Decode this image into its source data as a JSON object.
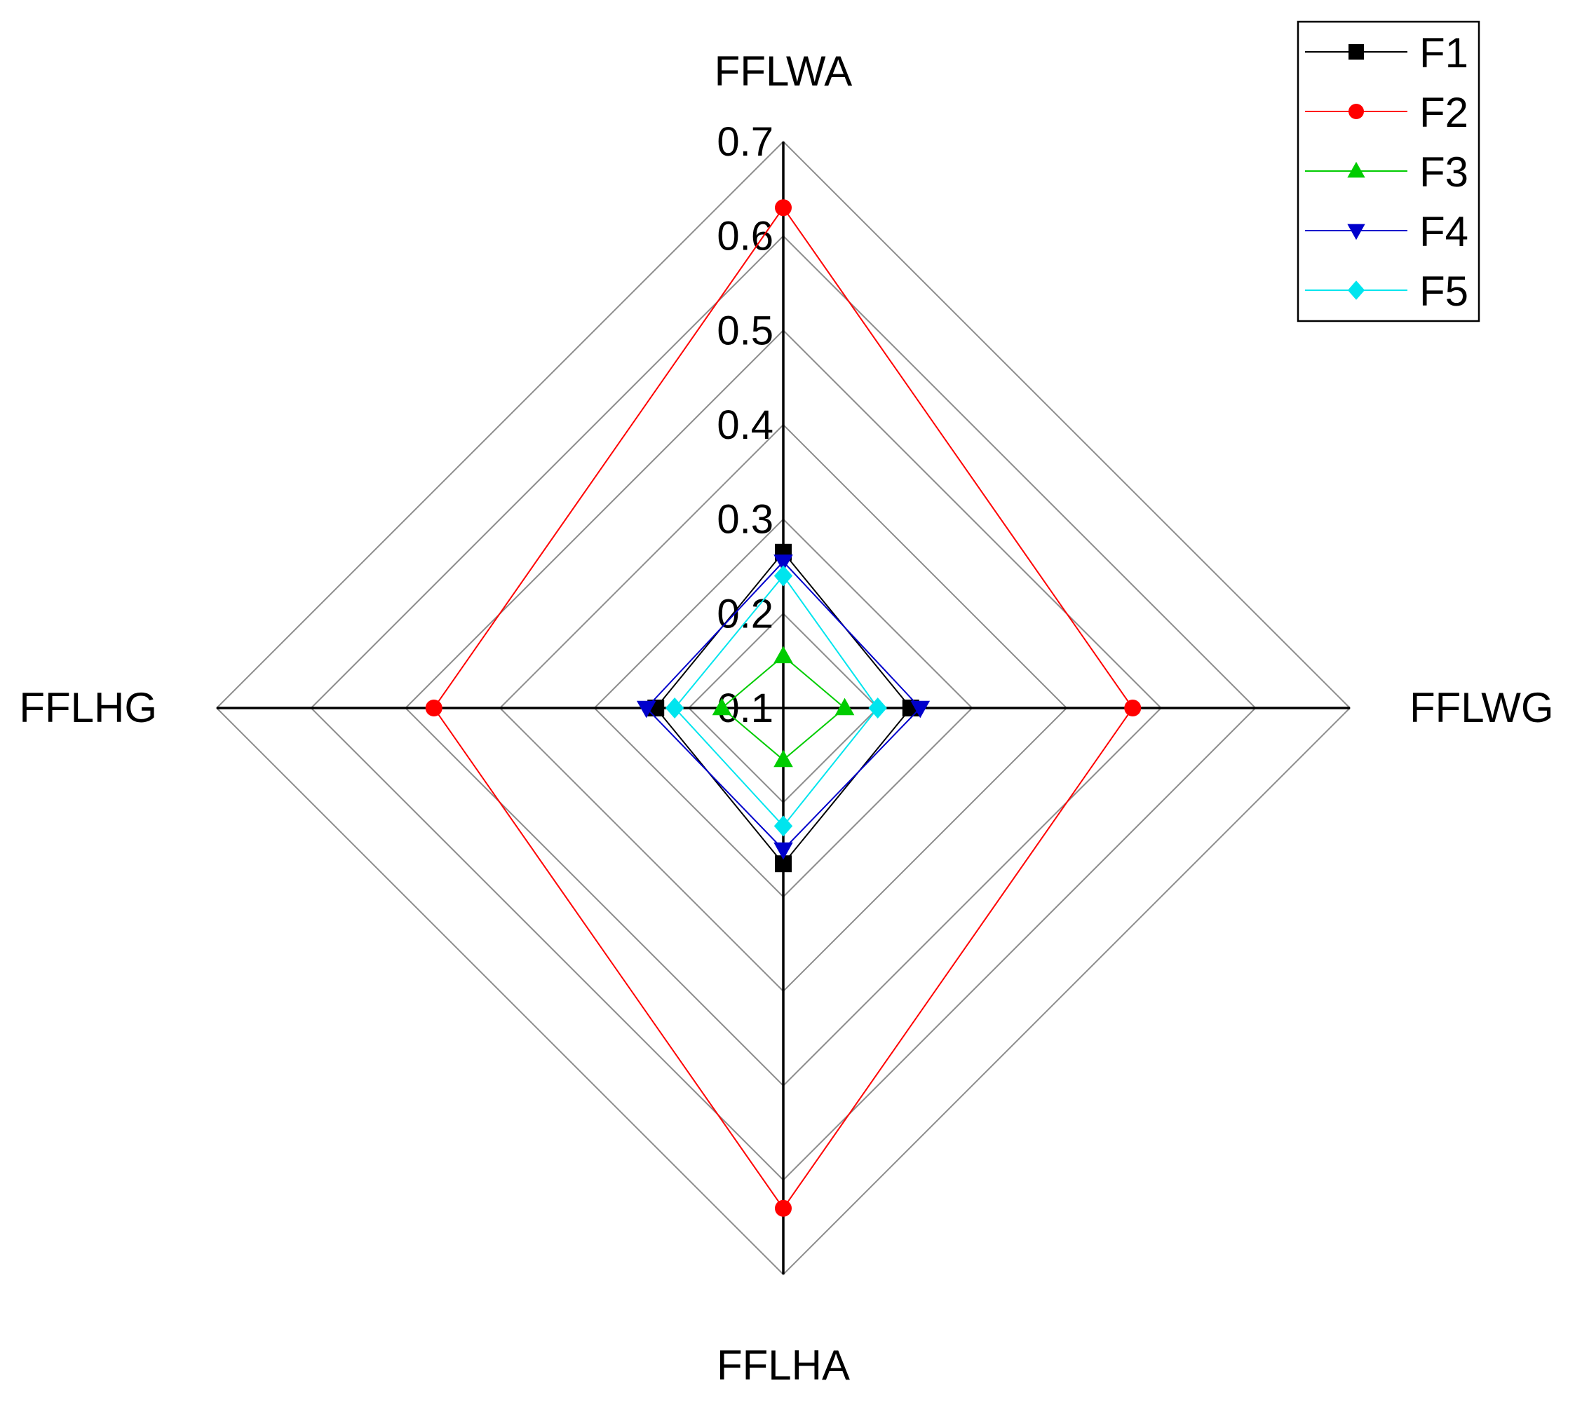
{
  "chart_data": {
    "type": "radar",
    "axes": [
      "FFLWA",
      "FFLWG",
      "FFLHA",
      "FFLHG"
    ],
    "radial_ticks": [
      "0.1",
      "0.2",
      "0.3",
      "0.4",
      "0.5",
      "0.6",
      "0.7"
    ],
    "rlim": [
      0.1,
      0.7
    ],
    "grid": true,
    "legend_position": "top-right",
    "series": [
      {
        "name": "F1",
        "color": "#000000",
        "marker": "square",
        "values": [
          0.265,
          0.235,
          0.265,
          0.235
        ]
      },
      {
        "name": "F2",
        "color": "#ff0000",
        "marker": "circle",
        "values": [
          0.63,
          0.47,
          0.63,
          0.47
        ]
      },
      {
        "name": "F3",
        "color": "#00cc00",
        "marker": "triangle-up",
        "values": [
          0.155,
          0.165,
          0.155,
          0.165
        ]
      },
      {
        "name": "F4",
        "color": "#0000cc",
        "marker": "triangle-down",
        "values": [
          0.255,
          0.245,
          0.25,
          0.245
        ]
      },
      {
        "name": "F5",
        "color": "#00e5ee",
        "marker": "diamond",
        "values": [
          0.24,
          0.2,
          0.225,
          0.215
        ]
      }
    ]
  }
}
